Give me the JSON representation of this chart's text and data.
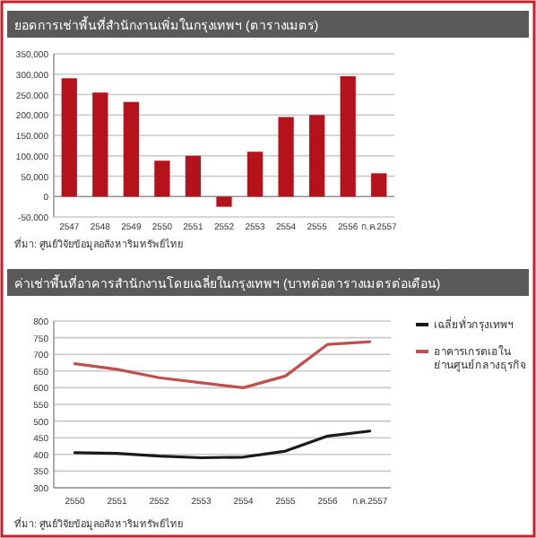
{
  "chart_data": [
    {
      "type": "bar",
      "title": "ยอดการเช่าพื้นที่สำนักงานเพิ่มในกรุงเทพฯ (ตารางเมตร)",
      "categories": [
        "2547",
        "2548",
        "2549",
        "2550",
        "2551",
        "2552",
        "2553",
        "2554",
        "2555",
        "2556",
        "ก.ค.2557"
      ],
      "series": [
        {
          "color": "#b5121b",
          "values": [
            290000,
            255000,
            232000,
            88000,
            100000,
            -25000,
            110000,
            195000,
            200000,
            295000,
            57000
          ]
        }
      ],
      "ylim": [
        -50000,
        350000
      ],
      "yticks": [
        {
          "value": -50000,
          "label": "-50,000"
        },
        0,
        {
          "value": 50000,
          "label": "50,000"
        },
        {
          "value": 100000,
          "label": "100,000"
        },
        {
          "value": 150000,
          "label": "150,000"
        },
        {
          "value": 200000,
          "label": "200,000"
        },
        {
          "value": 250000,
          "label": "250,000"
        },
        {
          "value": 300000,
          "label": "300,000"
        },
        {
          "value": 350000,
          "label": "350,000"
        }
      ],
      "grid": "y",
      "annotations": [
        "ที่มา: ศูนย์วิจัยข้อมูลอสังหาริมทรัพย์ไทย"
      ]
    },
    {
      "type": "line",
      "title": "ค่าเช่าพื้นที่อาคารสำนักงานโดยเฉลี่ยในกรุงเทพฯ (บาทต่อตารางเมตรต่อเดือน)",
      "categories": [
        "2550",
        "2551",
        "2552",
        "2553",
        "2554",
        "2555",
        "2556",
        "ก.ค.2557"
      ],
      "series": [
        {
          "name": "เฉลี่ยทั่วกรุงเทพฯ",
          "color": "#1a1a1a",
          "values": [
            405,
            403,
            395,
            390,
            392,
            410,
            455,
            470
          ]
        },
        {
          "name": "อาคารเกรดเอในย่านศูนย์กลางธุรกิจ",
          "color": "#c0504d",
          "values": [
            672,
            655,
            630,
            615,
            600,
            635,
            730,
            738
          ]
        }
      ],
      "ylim": [
        300,
        800
      ],
      "yticks": [
        300,
        350,
        400,
        450,
        500,
        550,
        600,
        650,
        700,
        750,
        800
      ],
      "grid": "y",
      "legend": "right",
      "annotations": [
        "ที่มา: ศูนย์วิจัยข้อมูลอสังหาริมทรัพย์ไทย"
      ]
    }
  ]
}
